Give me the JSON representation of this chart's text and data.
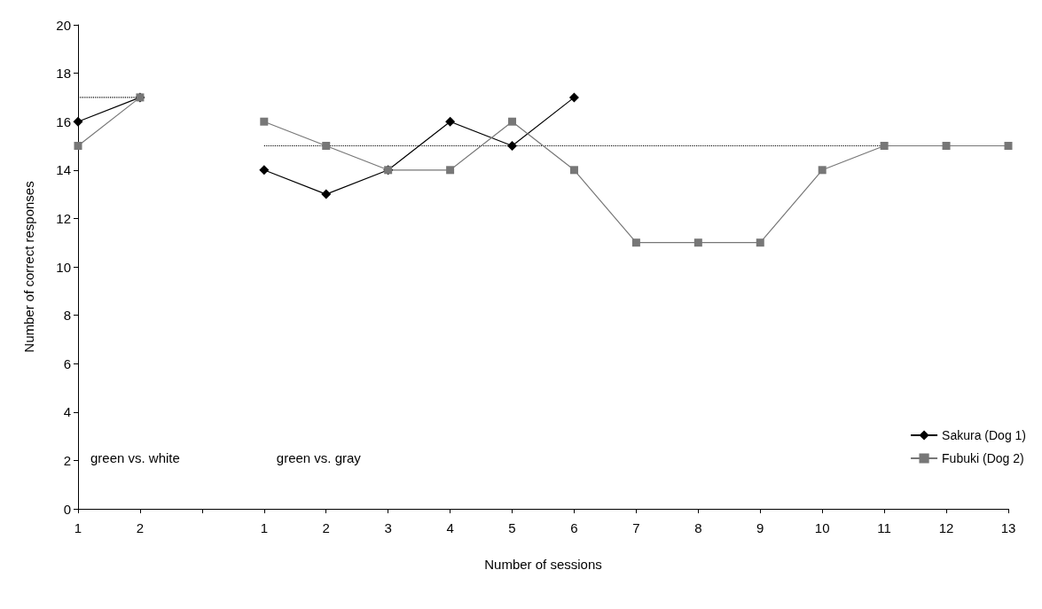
{
  "chart_data": {
    "type": "line",
    "xlabel": "Number of sessions",
    "ylabel": "Number of correct responses",
    "categories": [
      "1",
      "2",
      null,
      "1",
      "2",
      "3",
      "4",
      "5",
      "6",
      "7",
      "8",
      "9",
      "10",
      "11",
      "12",
      "13"
    ],
    "series": [
      {
        "name": "Sakura (Dog 1)",
        "color": "#000000",
        "marker": "diamond",
        "values": [
          16,
          17,
          null,
          14,
          13,
          14,
          16,
          15,
          17,
          null,
          null,
          null,
          null,
          null,
          null,
          null
        ]
      },
      {
        "name": "Fubuki (Dog 2)",
        "color": "#777777",
        "marker": "square",
        "values": [
          15,
          17,
          null,
          16,
          15,
          14,
          14,
          16,
          14,
          11,
          11,
          11,
          14,
          15,
          15,
          15
        ]
      },
      {
        "color": "#000000",
        "line_style": "dotted",
        "values": [
          17,
          17,
          null,
          null,
          null,
          null,
          null,
          null,
          null,
          null,
          null,
          null,
          null,
          null,
          null,
          null
        ]
      },
      {
        "color": "#000000",
        "line_style": "dotted",
        "values": [
          null,
          null,
          null,
          15,
          15,
          15,
          15,
          15,
          15,
          15,
          15,
          15,
          15,
          15,
          15,
          15
        ]
      }
    ],
    "annotations": [
      "green vs. white",
      "green vs. gray"
    ],
    "ylim": [
      0,
      20
    ],
    "yticks": [
      0,
      2,
      4,
      6,
      8,
      10,
      12,
      14,
      16,
      18,
      20
    ],
    "grid": false,
    "legend": "bottom right"
  }
}
